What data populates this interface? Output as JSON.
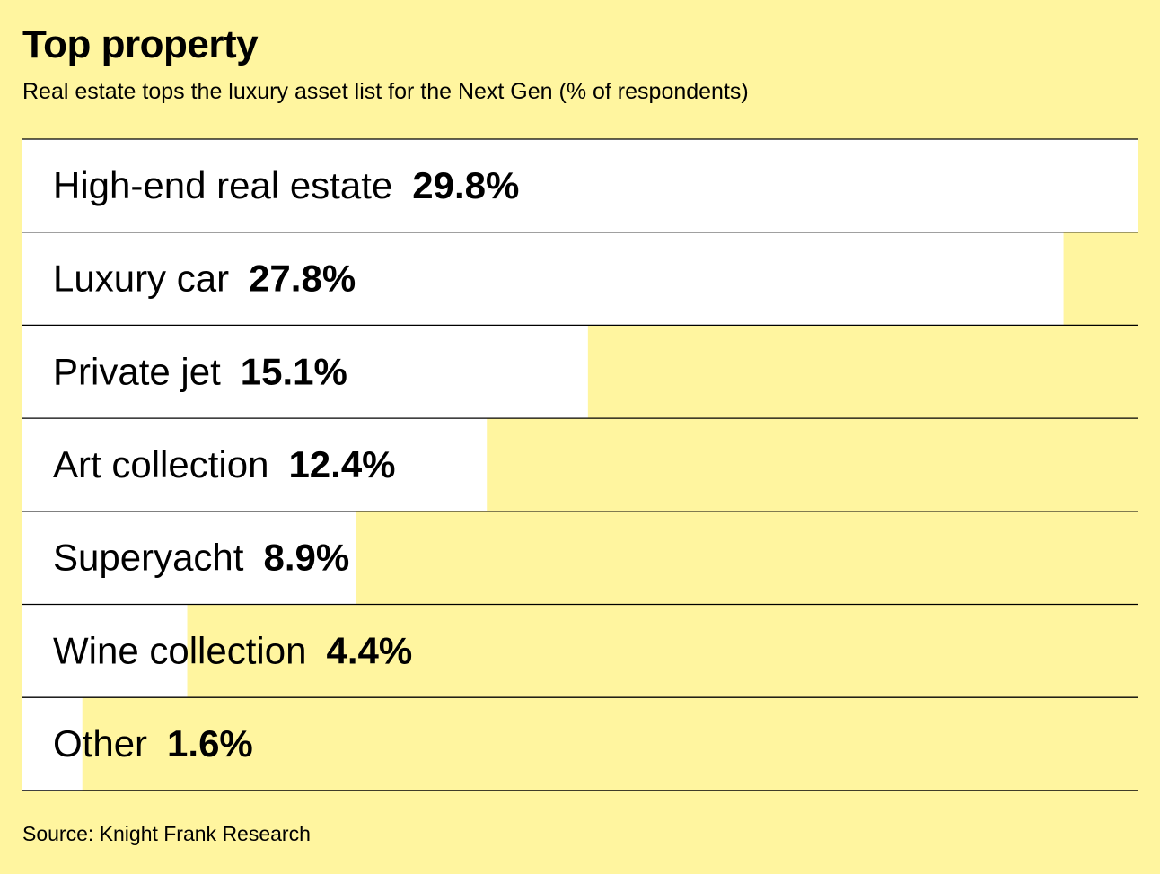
{
  "chart_data": {
    "type": "bar",
    "orientation": "horizontal",
    "title": "Top property",
    "subtitle": "Real estate tops the luxury asset list for the Next Gen (% of respondents)",
    "categories": [
      "High-end real estate",
      "Luxury car",
      "Private jet",
      "Art collection",
      "Superyacht",
      "Wine collection",
      "Other"
    ],
    "values": [
      29.8,
      27.8,
      15.1,
      12.4,
      8.9,
      4.4,
      1.6
    ],
    "value_labels": [
      "29.8%",
      "27.8%",
      "15.1%",
      "12.4%",
      "8.9%",
      "4.4%",
      "1.6%"
    ],
    "xlim": [
      0,
      29.8
    ],
    "grid": false,
    "legend": "none",
    "source": "Source: Knight Frank Research",
    "colors": {
      "background": "#FFF59F",
      "bar": "#FFFFFF",
      "divider": "#000000",
      "text": "#000000"
    }
  }
}
